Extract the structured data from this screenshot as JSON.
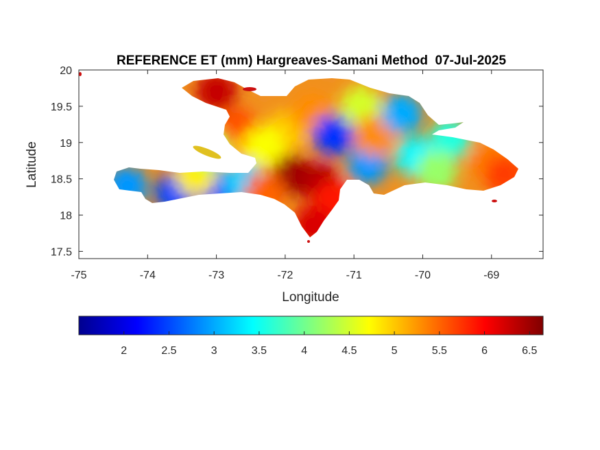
{
  "chart_data": {
    "type": "heatmap",
    "title": "REFERENCE ET (mm) Hargreaves-Samani Method  07-Jul-2025",
    "xlabel": "Longitude",
    "ylabel": "Latitude",
    "xlim": [
      -75,
      -68.25
    ],
    "ylim": [
      17.4,
      20
    ],
    "x_ticks": [
      -75,
      -74,
      -73,
      -72,
      -71,
      -70,
      -69
    ],
    "x_tick_labels": [
      "-75",
      "-74",
      "-73",
      "-72",
      "-71",
      "-70",
      "-69"
    ],
    "y_ticks": [
      17.5,
      18,
      18.5,
      19,
      19.5,
      20
    ],
    "y_tick_labels": [
      "17.5",
      "18",
      "18.5",
      "19",
      "19.5",
      "20"
    ],
    "colorbar": {
      "colormap": "jet",
      "orientation": "horizontal",
      "location": "below",
      "range": [
        1.5,
        6.65
      ],
      "ticks": [
        2,
        2.5,
        3,
        3.5,
        4,
        4.5,
        5,
        5.5,
        6,
        6.5
      ],
      "tick_labels": [
        "2",
        "2.5",
        "3",
        "3.5",
        "4",
        "4.5",
        "5",
        "5.5",
        "6",
        "6.5"
      ]
    },
    "grid": false,
    "regions": [
      {
        "lon": -73.0,
        "lat": 19.7,
        "value": 6.3
      },
      {
        "lon": -72.7,
        "lat": 19.2,
        "value": 5.6
      },
      {
        "lon": -72.5,
        "lat": 18.85,
        "value": 5.2
      },
      {
        "lon": -72.0,
        "lat": 19.15,
        "value": 5.0
      },
      {
        "lon": -71.6,
        "lat": 19.4,
        "value": 5.3
      },
      {
        "lon": -71.9,
        "lat": 18.55,
        "value": 6.5
      },
      {
        "lon": -71.5,
        "lat": 18.45,
        "value": 6.4
      },
      {
        "lon": -71.3,
        "lat": 18.2,
        "value": 5.9
      },
      {
        "lon": -71.6,
        "lat": 17.85,
        "value": 6.2
      },
      {
        "lon": -71.3,
        "lat": 19.1,
        "value": 2.4
      },
      {
        "lon": -70.8,
        "lat": 18.7,
        "value": 2.9
      },
      {
        "lon": -70.9,
        "lat": 19.5,
        "value": 4.5
      },
      {
        "lon": -70.7,
        "lat": 19.1,
        "value": 5.3
      },
      {
        "lon": -70.3,
        "lat": 19.4,
        "value": 3.0
      },
      {
        "lon": -70.1,
        "lat": 18.8,
        "value": 3.4
      },
      {
        "lon": -69.6,
        "lat": 19.05,
        "value": 3.6
      },
      {
        "lon": -69.8,
        "lat": 18.6,
        "value": 4.2
      },
      {
        "lon": -69.0,
        "lat": 18.7,
        "value": 5.4
      },
      {
        "lon": -68.8,
        "lat": 18.55,
        "value": 5.7
      },
      {
        "lon": -74.3,
        "lat": 18.4,
        "value": 2.9
      },
      {
        "lon": -73.6,
        "lat": 18.3,
        "value": 2.5
      },
      {
        "lon": -73.0,
        "lat": 18.35,
        "value": 2.4
      },
      {
        "lon": -73.3,
        "lat": 18.55,
        "value": 4.8
      },
      {
        "lon": -72.6,
        "lat": 18.45,
        "value": 3.2
      },
      {
        "lon": -72.3,
        "lat": 18.3,
        "value": 5.5
      },
      {
        "lon": -73.1,
        "lat": 18.9,
        "value": 4.3
      },
      {
        "lon": -72.3,
        "lat": 18.95,
        "value": 4.7
      }
    ]
  }
}
